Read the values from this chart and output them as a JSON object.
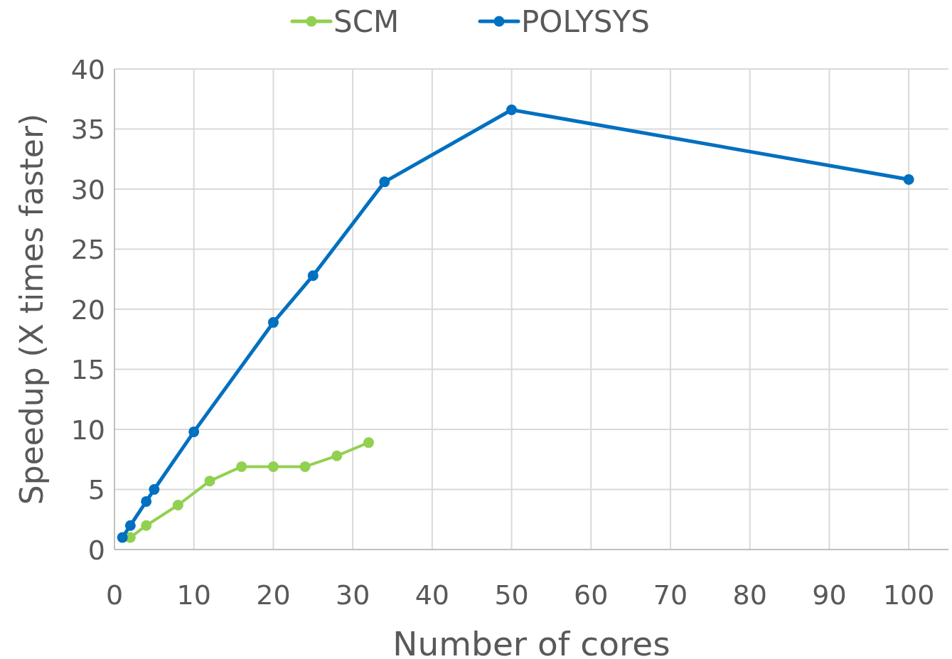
{
  "chart_data": {
    "type": "line",
    "xlabel": "Number of cores",
    "ylabel": "Speedup (X times faster)",
    "xlim": [
      0,
      105
    ],
    "xticks": [
      0,
      10,
      20,
      30,
      40,
      50,
      60,
      70,
      80,
      90,
      100
    ],
    "ylim": [
      0,
      40
    ],
    "yticks": [
      0,
      5,
      10,
      15,
      20,
      25,
      30,
      35,
      40
    ],
    "grid": true,
    "legend": "top",
    "marker": "circle",
    "line_style": "solid",
    "series": [
      {
        "name": "SCM",
        "color": "#92d050",
        "x": [
          2,
          4,
          8,
          12,
          16,
          20,
          24,
          28,
          32
        ],
        "values": [
          1.0,
          2.0,
          3.7,
          5.7,
          6.9,
          6.9,
          6.9,
          7.8,
          8.9
        ]
      },
      {
        "name": "POLYSYS",
        "color": "#0070c0",
        "x": [
          1,
          2,
          4,
          5,
          10,
          20,
          25,
          34,
          50,
          100
        ],
        "values": [
          1.0,
          2.0,
          4.0,
          5.0,
          9.8,
          18.9,
          22.8,
          30.6,
          36.6,
          30.8
        ]
      }
    ]
  }
}
